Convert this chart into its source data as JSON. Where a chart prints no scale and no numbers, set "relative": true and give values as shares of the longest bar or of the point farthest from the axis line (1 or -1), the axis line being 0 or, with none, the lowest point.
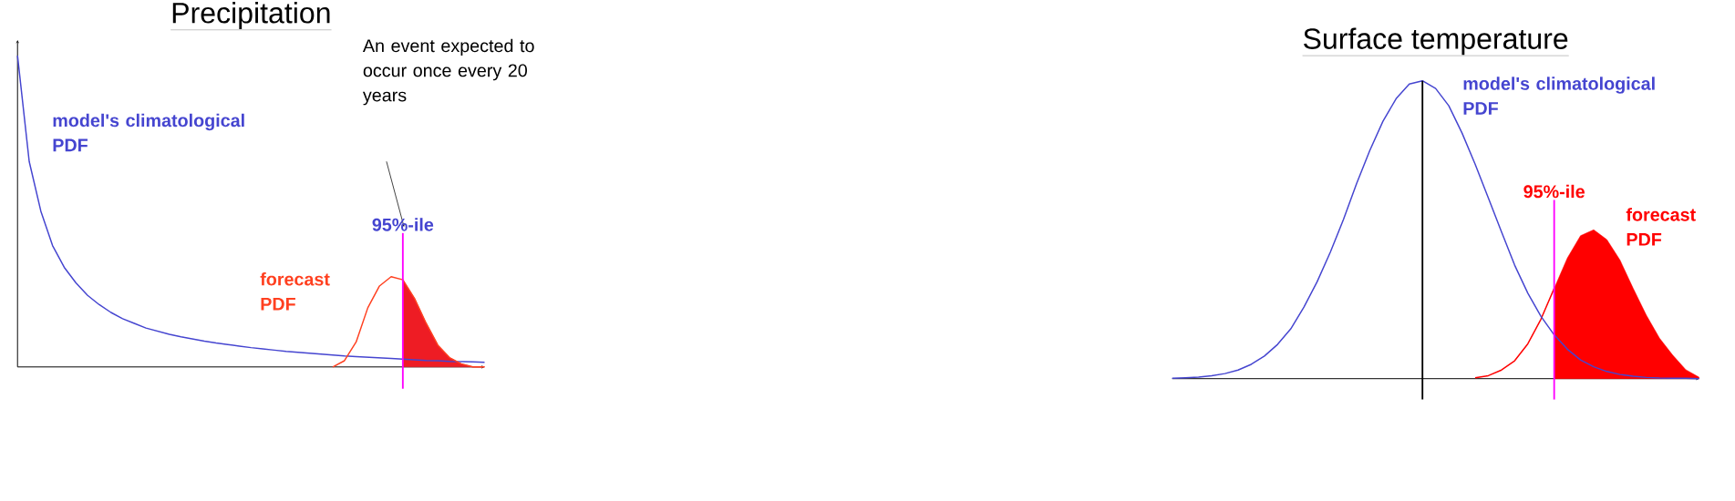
{
  "chart_data": [
    {
      "type": "line",
      "title": "Precipitation",
      "relative": true,
      "categories": [
        null,
        null,
        null,
        null,
        null,
        null,
        null,
        null,
        null,
        null,
        null,
        null,
        null,
        null,
        null,
        null,
        null,
        null,
        null,
        null,
        null,
        null,
        null,
        null,
        null,
        null,
        null,
        null,
        null,
        null,
        null,
        null,
        null,
        null,
        null,
        null,
        null,
        null,
        null,
        null,
        null
      ],
      "series": [
        {
          "name": "model's climatological PDF",
          "color": "#4545d0",
          "values": [
            1.0,
            0.66,
            0.5,
            0.39,
            0.32,
            0.27,
            0.23,
            0.2,
            0.175,
            0.155,
            0.14,
            0.125,
            0.115,
            0.105,
            0.097,
            0.09,
            0.083,
            0.077,
            0.072,
            0.067,
            0.062,
            0.058,
            0.054,
            0.05,
            0.047,
            0.044,
            0.041,
            0.038,
            0.035,
            0.033,
            0.031,
            0.029,
            0.027,
            0.025,
            0.023,
            0.021,
            0.02,
            0.018,
            0.017,
            0.016,
            0.015
          ]
        },
        {
          "name": "forecast PDF",
          "color": "#ff4020",
          "values": [
            null,
            null,
            null,
            null,
            null,
            null,
            null,
            null,
            null,
            null,
            null,
            null,
            null,
            null,
            null,
            null,
            null,
            null,
            null,
            null,
            null,
            null,
            null,
            null,
            null,
            null,
            null,
            0,
            0.02,
            0.08,
            0.19,
            0.26,
            0.29,
            0.28,
            0.22,
            0.14,
            0.07,
            0.03,
            0.01,
            0,
            0
          ]
        },
        {
          "type": "area",
          "color": "#ee1c24",
          "values": [
            null,
            null,
            null,
            null,
            null,
            null,
            null,
            null,
            null,
            null,
            null,
            null,
            null,
            null,
            null,
            null,
            null,
            null,
            null,
            null,
            null,
            null,
            null,
            null,
            null,
            null,
            null,
            null,
            null,
            null,
            null,
            null,
            null,
            0.28,
            0.22,
            0.14,
            0.07,
            0.03,
            0.01,
            0,
            0
          ]
        }
      ],
      "annotations": [
        "An event expected to occur once every 20 years",
        "95%-ile"
      ]
    },
    {
      "type": "line",
      "title": "Surface temperature",
      "relative": true,
      "categories": [
        null,
        null,
        null,
        null,
        null,
        null,
        null,
        null,
        null,
        null,
        null,
        null,
        null,
        null,
        null,
        null,
        null,
        null,
        null,
        null,
        null,
        null,
        null,
        null,
        null,
        null,
        null,
        null,
        null,
        null,
        null,
        null,
        null,
        null,
        null,
        null,
        null,
        null,
        null,
        null,
        null
      ],
      "series": [
        {
          "type": "area",
          "color": "#ff0000",
          "values": [
            null,
            null,
            null,
            null,
            null,
            null,
            null,
            null,
            null,
            null,
            null,
            null,
            null,
            null,
            null,
            null,
            null,
            null,
            null,
            null,
            null,
            null,
            null,
            null,
            null,
            null,
            null,
            null,
            null,
            0.303,
            0.405,
            0.48,
            0.5,
            0.467,
            0.398,
            0.303,
            0.213,
            0.136,
            0.079,
            0.03,
            0.005
          ]
        },
        {
          "name": "forecast PDF",
          "color": "#ff0000",
          "values": [
            null,
            null,
            null,
            null,
            null,
            null,
            null,
            null,
            null,
            null,
            null,
            null,
            null,
            null,
            null,
            null,
            null,
            null,
            null,
            null,
            null,
            null,
            null,
            0.003,
            0.01,
            0.029,
            0.06,
            0.117,
            0.2,
            0.303,
            null,
            null,
            null,
            null,
            null,
            null,
            null,
            null,
            null,
            null,
            null
          ]
        },
        {
          "name": "model's climatological PDF",
          "color": "#4545d0",
          "values": [
            0.001,
            0.003,
            0.005,
            0.01,
            0.017,
            0.029,
            0.048,
            0.076,
            0.115,
            0.167,
            0.24,
            0.325,
            0.424,
            0.534,
            0.655,
            0.766,
            0.864,
            0.94,
            0.989,
            1,
            0.974,
            0.916,
            0.825,
            0.72,
            0.607,
            0.493,
            0.381,
            0.287,
            0.209,
            0.147,
            0.099,
            0.063,
            0.04,
            0.024,
            0.014,
            0.008,
            0.004,
            0.002,
            0.001,
            0.001,
            0
          ]
        }
      ],
      "annotations": [
        "95%-ile"
      ]
    }
  ]
}
